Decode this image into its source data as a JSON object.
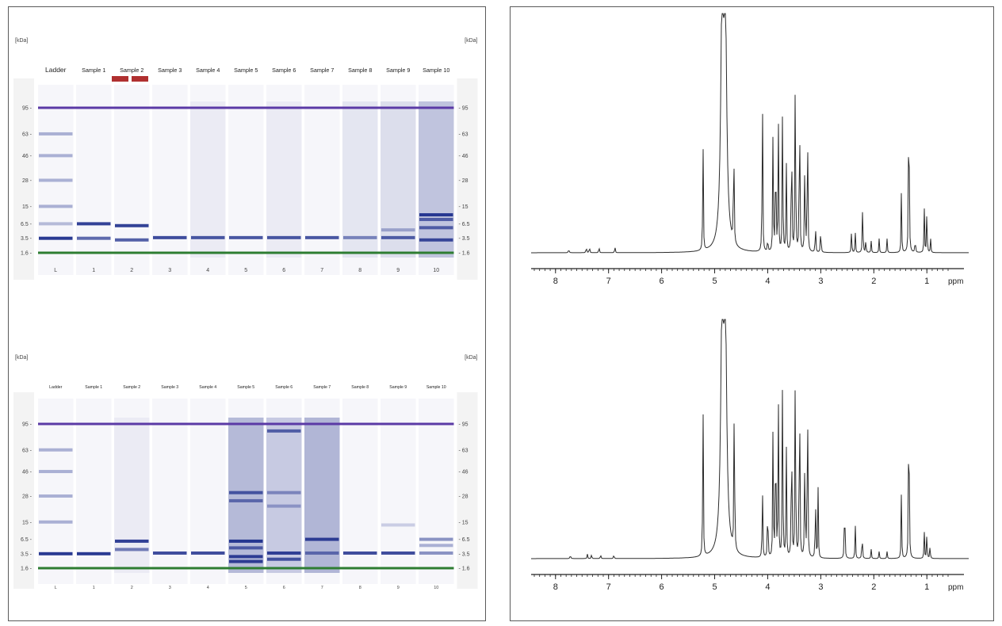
{
  "chart_data": [
    {
      "type": "gel-image",
      "unit_label": "[kDa]",
      "lanes": [
        {
          "header": "Ladder",
          "number": "L"
        },
        {
          "header": "Sample 1",
          "number": "1"
        },
        {
          "header": "Sample 2",
          "number": "2"
        },
        {
          "header": "Sample 3",
          "number": "3"
        },
        {
          "header": "Sample 4",
          "number": "4"
        },
        {
          "header": "Sample 5",
          "number": "5"
        },
        {
          "header": "Sample 6",
          "number": "6"
        },
        {
          "header": "Sample 7",
          "number": "7"
        },
        {
          "header": "Sample 8",
          "number": "8"
        },
        {
          "header": "Sample 9",
          "number": "9"
        },
        {
          "header": "Sample 10",
          "number": "10"
        }
      ],
      "size_markers_kDa": [
        "95",
        "63",
        "46",
        "28",
        "15",
        "6.5",
        "3.5",
        "1.6"
      ],
      "flagged_lane_index": 2,
      "flag_color": "#b03030",
      "band_color": "#1e2f8c",
      "upper_marker_color": "#5b3aa6",
      "lower_marker_color": "#2e7d32",
      "bands": [
        {
          "lane": 0,
          "kDa": 63,
          "intensity": 0.35
        },
        {
          "lane": 0,
          "kDa": 46,
          "intensity": 0.35
        },
        {
          "lane": 0,
          "kDa": 28,
          "intensity": 0.35
        },
        {
          "lane": 0,
          "kDa": 15,
          "intensity": 0.35
        },
        {
          "lane": 0,
          "kDa": 6.5,
          "intensity": 0.3
        },
        {
          "lane": 0,
          "kDa": 3.5,
          "intensity": 0.95
        },
        {
          "lane": 1,
          "kDa": 6.5,
          "intensity": 0.9
        },
        {
          "lane": 1,
          "kDa": 3.5,
          "intensity": 0.7
        },
        {
          "lane": 2,
          "kDa": 6.0,
          "intensity": 0.9
        },
        {
          "lane": 2,
          "kDa": 3.2,
          "intensity": 0.75
        },
        {
          "lane": 3,
          "kDa": 3.6,
          "intensity": 0.85
        },
        {
          "lane": 4,
          "kDa": 3.6,
          "intensity": 0.8
        },
        {
          "lane": 5,
          "kDa": 3.6,
          "intensity": 0.8
        },
        {
          "lane": 6,
          "kDa": 3.6,
          "intensity": 0.8
        },
        {
          "lane": 7,
          "kDa": 3.6,
          "intensity": 0.8
        },
        {
          "lane": 8,
          "kDa": 3.6,
          "intensity": 0.55
        },
        {
          "lane": 9,
          "kDa": 5.0,
          "intensity": 0.35
        },
        {
          "lane": 9,
          "kDa": 3.6,
          "intensity": 0.75
        },
        {
          "lane": 10,
          "kDa": 10,
          "intensity": 0.95
        },
        {
          "lane": 10,
          "kDa": 8,
          "intensity": 0.7
        },
        {
          "lane": 10,
          "kDa": 5.5,
          "intensity": 0.7
        },
        {
          "lane": 10,
          "kDa": 3.2,
          "intensity": 0.85
        }
      ],
      "smears": [
        {
          "lane": 8,
          "from_kDa": 95,
          "to_kDa": 1.6,
          "intensity": 0.08
        },
        {
          "lane": 9,
          "from_kDa": 95,
          "to_kDa": 1.6,
          "intensity": 0.12
        },
        {
          "lane": 10,
          "from_kDa": 95,
          "to_kDa": 1.6,
          "intensity": 0.25
        },
        {
          "lane": 4,
          "from_kDa": 95,
          "to_kDa": 1.6,
          "intensity": 0.05
        },
        {
          "lane": 6,
          "from_kDa": 95,
          "to_kDa": 1.6,
          "intensity": 0.05
        }
      ]
    },
    {
      "type": "gel-image",
      "unit_label": "[kDa]",
      "lanes": [
        {
          "header": "Ladder",
          "number": "L"
        },
        {
          "header": "Sample 1",
          "number": "1"
        },
        {
          "header": "Sample 2",
          "number": "2"
        },
        {
          "header": "Sample 3",
          "number": "3"
        },
        {
          "header": "Sample 4",
          "number": "4"
        },
        {
          "header": "Sample 5",
          "number": "5"
        },
        {
          "header": "Sample 6",
          "number": "6"
        },
        {
          "header": "Sample 7",
          "number": "7"
        },
        {
          "header": "Sample 8",
          "number": "8"
        },
        {
          "header": "Sample 9",
          "number": "9"
        },
        {
          "header": "Sample 10",
          "number": "10"
        }
      ],
      "size_markers_kDa": [
        "95",
        "63",
        "46",
        "28",
        "15",
        "6.5",
        "3.5",
        "1.6"
      ],
      "band_color": "#1e2f8c",
      "upper_marker_color": "#5b3aa6",
      "lower_marker_color": "#2e7d32",
      "bands": [
        {
          "lane": 0,
          "kDa": 63,
          "intensity": 0.35
        },
        {
          "lane": 0,
          "kDa": 46,
          "intensity": 0.35
        },
        {
          "lane": 0,
          "kDa": 28,
          "intensity": 0.35
        },
        {
          "lane": 0,
          "kDa": 15,
          "intensity": 0.35
        },
        {
          "lane": 0,
          "kDa": 3.5,
          "intensity": 0.95
        },
        {
          "lane": 1,
          "kDa": 3.5,
          "intensity": 0.95
        },
        {
          "lane": 2,
          "kDa": 6.0,
          "intensity": 0.9
        },
        {
          "lane": 2,
          "kDa": 4.2,
          "intensity": 0.6
        },
        {
          "lane": 3,
          "kDa": 3.6,
          "intensity": 0.85
        },
        {
          "lane": 4,
          "kDa": 3.6,
          "intensity": 0.85
        },
        {
          "lane": 5,
          "kDa": 30,
          "intensity": 0.75
        },
        {
          "lane": 5,
          "kDa": 25,
          "intensity": 0.6
        },
        {
          "lane": 5,
          "kDa": 6.0,
          "intensity": 0.95
        },
        {
          "lane": 5,
          "kDa": 4.5,
          "intensity": 0.7
        },
        {
          "lane": 5,
          "kDa": 3.0,
          "intensity": 0.9
        },
        {
          "lane": 5,
          "kDa": 2.3,
          "intensity": 0.9
        },
        {
          "lane": 6,
          "kDa": 85,
          "intensity": 0.7
        },
        {
          "lane": 6,
          "kDa": 30,
          "intensity": 0.45
        },
        {
          "lane": 6,
          "kDa": 22,
          "intensity": 0.35
        },
        {
          "lane": 6,
          "kDa": 3.6,
          "intensity": 0.9
        },
        {
          "lane": 6,
          "kDa": 2.6,
          "intensity": 0.8
        },
        {
          "lane": 7,
          "kDa": 6.5,
          "intensity": 0.9
        },
        {
          "lane": 7,
          "kDa": 3.6,
          "intensity": 0.6
        },
        {
          "lane": 8,
          "kDa": 3.6,
          "intensity": 0.85
        },
        {
          "lane": 9,
          "kDa": 13,
          "intensity": 0.2
        },
        {
          "lane": 9,
          "kDa": 3.6,
          "intensity": 0.85
        },
        {
          "lane": 10,
          "kDa": 6.5,
          "intensity": 0.5
        },
        {
          "lane": 10,
          "kDa": 5.0,
          "intensity": 0.35
        },
        {
          "lane": 10,
          "kDa": 3.6,
          "intensity": 0.5
        }
      ],
      "smears": [
        {
          "lane": 5,
          "from_kDa": 95,
          "to_kDa": 1.6,
          "intensity": 0.3
        },
        {
          "lane": 6,
          "from_kDa": 95,
          "to_kDa": 1.6,
          "intensity": 0.22
        },
        {
          "lane": 7,
          "from_kDa": 95,
          "to_kDa": 1.6,
          "intensity": 0.32
        },
        {
          "lane": 2,
          "from_kDa": 95,
          "to_kDa": 1.6,
          "intensity": 0.05
        }
      ]
    },
    {
      "type": "line",
      "description_axis": "chemical shift",
      "axis_unit": "ppm",
      "xlim": [
        8.4,
        0.6
      ],
      "xticks": [
        "8",
        "7",
        "6",
        "5",
        "4",
        "3",
        "2",
        "1"
      ],
      "ylim": [
        0,
        1
      ],
      "line_color": "#2b2b2b",
      "peaks": [
        {
          "ppm": 7.75,
          "h": 0.02
        },
        {
          "ppm": 7.42,
          "h": 0.03
        },
        {
          "ppm": 7.36,
          "h": 0.03
        },
        {
          "ppm": 7.18,
          "h": 0.03
        },
        {
          "ppm": 6.88,
          "h": 0.03
        },
        {
          "ppm": 5.22,
          "h": 0.52
        },
        {
          "ppm": 4.86,
          "h": 1.0
        },
        {
          "ppm": 4.8,
          "h": 1.0
        },
        {
          "ppm": 4.64,
          "h": 0.57
        },
        {
          "ppm": 4.1,
          "h": 0.78
        },
        {
          "ppm": 4.0,
          "h": 0.07
        },
        {
          "ppm": 3.9,
          "h": 0.55
        },
        {
          "ppm": 3.85,
          "h": 0.6
        },
        {
          "ppm": 3.8,
          "h": 0.61
        },
        {
          "ppm": 3.72,
          "h": 0.71
        },
        {
          "ppm": 3.65,
          "h": 0.4
        },
        {
          "ppm": 3.55,
          "h": 0.7
        },
        {
          "ppm": 3.48,
          "h": 0.94
        },
        {
          "ppm": 3.4,
          "h": 0.86
        },
        {
          "ppm": 3.3,
          "h": 0.5
        },
        {
          "ppm": 3.25,
          "h": 0.73
        },
        {
          "ppm": 3.1,
          "h": 0.14
        },
        {
          "ppm": 3.0,
          "h": 0.13
        },
        {
          "ppm": 2.42,
          "h": 0.1
        },
        {
          "ppm": 2.35,
          "h": 0.09
        },
        {
          "ppm": 2.21,
          "h": 0.24
        },
        {
          "ppm": 2.15,
          "h": 0.06
        },
        {
          "ppm": 2.05,
          "h": 0.05
        },
        {
          "ppm": 1.9,
          "h": 0.06
        },
        {
          "ppm": 1.75,
          "h": 0.06
        },
        {
          "ppm": 1.48,
          "h": 0.27
        },
        {
          "ppm": 1.34,
          "h": 0.98
        },
        {
          "ppm": 1.22,
          "h": 0.07
        },
        {
          "ppm": 1.05,
          "h": 0.2
        },
        {
          "ppm": 1.0,
          "h": 0.2
        },
        {
          "ppm": 0.93,
          "h": 0.06
        }
      ]
    },
    {
      "type": "line",
      "description_axis": "chemical shift",
      "axis_unit": "ppm",
      "xlim": [
        8.4,
        0.6
      ],
      "xticks": [
        "8",
        "7",
        "6",
        "5",
        "4",
        "3",
        "2",
        "1"
      ],
      "ylim": [
        0,
        1
      ],
      "line_color": "#2b2b2b",
      "peaks": [
        {
          "ppm": 7.72,
          "h": 0.02
        },
        {
          "ppm": 7.4,
          "h": 0.02
        },
        {
          "ppm": 7.32,
          "h": 0.02
        },
        {
          "ppm": 7.15,
          "h": 0.02
        },
        {
          "ppm": 6.9,
          "h": 0.02
        },
        {
          "ppm": 5.22,
          "h": 0.73
        },
        {
          "ppm": 4.86,
          "h": 1.0
        },
        {
          "ppm": 4.8,
          "h": 1.0
        },
        {
          "ppm": 4.63,
          "h": 0.82
        },
        {
          "ppm": 4.1,
          "h": 0.35
        },
        {
          "ppm": 4.0,
          "h": 0.3
        },
        {
          "ppm": 3.9,
          "h": 0.6
        },
        {
          "ppm": 3.85,
          "h": 0.75
        },
        {
          "ppm": 3.8,
          "h": 0.73
        },
        {
          "ppm": 3.72,
          "h": 0.88
        },
        {
          "ppm": 3.65,
          "h": 0.5
        },
        {
          "ppm": 3.55,
          "h": 0.75
        },
        {
          "ppm": 3.48,
          "h": 1.0
        },
        {
          "ppm": 3.4,
          "h": 1.0
        },
        {
          "ppm": 3.3,
          "h": 0.55
        },
        {
          "ppm": 3.25,
          "h": 0.94
        },
        {
          "ppm": 3.1,
          "h": 0.32
        },
        {
          "ppm": 3.05,
          "h": 0.3
        },
        {
          "ppm": 2.55,
          "h": 0.33
        },
        {
          "ppm": 2.35,
          "h": 0.15
        },
        {
          "ppm": 2.22,
          "h": 0.13
        },
        {
          "ppm": 2.05,
          "h": 0.04
        },
        {
          "ppm": 1.9,
          "h": 0.03
        },
        {
          "ppm": 1.75,
          "h": 0.03
        },
        {
          "ppm": 1.48,
          "h": 0.29
        },
        {
          "ppm": 1.34,
          "h": 0.97
        },
        {
          "ppm": 1.05,
          "h": 0.12
        },
        {
          "ppm": 1.0,
          "h": 0.12
        },
        {
          "ppm": 0.94,
          "h": 0.06
        }
      ]
    }
  ]
}
